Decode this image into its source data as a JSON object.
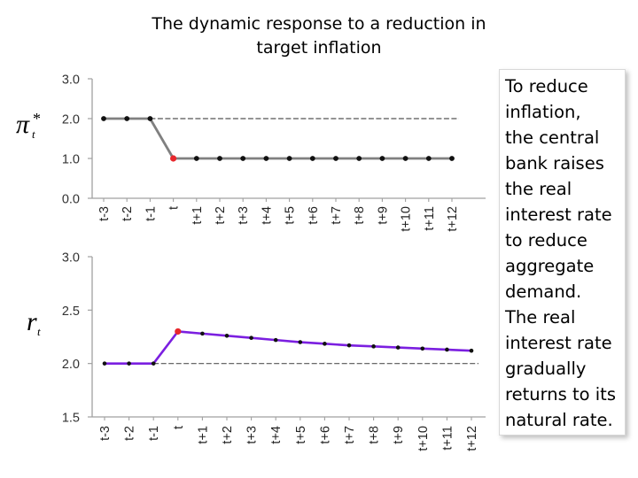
{
  "title": {
    "line1": "The dynamic response to a reduction in",
    "line2": "target inflation"
  },
  "side_note": {
    "lines": [
      "To reduce",
      "inflation,",
      "the central",
      "bank raises",
      "the real",
      "interest rate",
      "to reduce",
      "aggregate",
      "demand.",
      "The real",
      "interest rate",
      "gradually",
      "returns to its",
      "natural rate."
    ]
  },
  "colors": {
    "series_top": "#808080",
    "series_bottom": "#7b1fe0",
    "highlight_point": "#e8282d",
    "axis": "#a0a0a0",
    "dashed_line": "#555555"
  },
  "chart_data": [
    {
      "type": "line",
      "ylabel_symbol": "π",
      "ylabel_superscript": "*",
      "ylabel_subscript": "t",
      "categories": [
        "t-3",
        "t-2",
        "t-1",
        "t",
        "t+1",
        "t+2",
        "t+3",
        "t+4",
        "t+5",
        "t+6",
        "t+7",
        "t+8",
        "t+9",
        "t+10",
        "t+11",
        "t+12"
      ],
      "yticks": [
        "3.0",
        "2.0",
        "1.0",
        "0.0"
      ],
      "ylim": [
        0,
        3
      ],
      "series": [
        {
          "values": [
            2.0,
            2.0,
            2.0,
            1.0,
            1.0,
            1.0,
            1.0,
            1.0,
            1.0,
            1.0,
            1.0,
            1.0,
            1.0,
            1.0,
            1.0,
            1.0
          ]
        }
      ],
      "highlight_index": 3,
      "reference_line": {
        "y": 2.0,
        "from_index": 2,
        "to_index": 15
      }
    },
    {
      "type": "line",
      "ylabel_symbol": "r",
      "ylabel_subscript": "t",
      "categories": [
        "t-3",
        "t-2",
        "t-1",
        "t",
        "t+1",
        "t+2",
        "t+3",
        "t+4",
        "t+5",
        "t+6",
        "t+7",
        "t+8",
        "t+9",
        "t+10",
        "t+11",
        "t+12"
      ],
      "yticks": [
        "3.0",
        "2.5",
        "2.0",
        "1.5"
      ],
      "ylim": [
        1.5,
        3.0
      ],
      "series": [
        {
          "values": [
            2.0,
            2.0,
            2.0,
            2.3,
            2.28,
            2.26,
            2.24,
            2.22,
            2.2,
            2.185,
            2.17,
            2.16,
            2.15,
            2.14,
            2.13,
            2.12
          ]
        }
      ],
      "highlight_index": 3,
      "reference_line": {
        "y": 2.0,
        "from_index": 2,
        "to_index": 15
      }
    }
  ]
}
